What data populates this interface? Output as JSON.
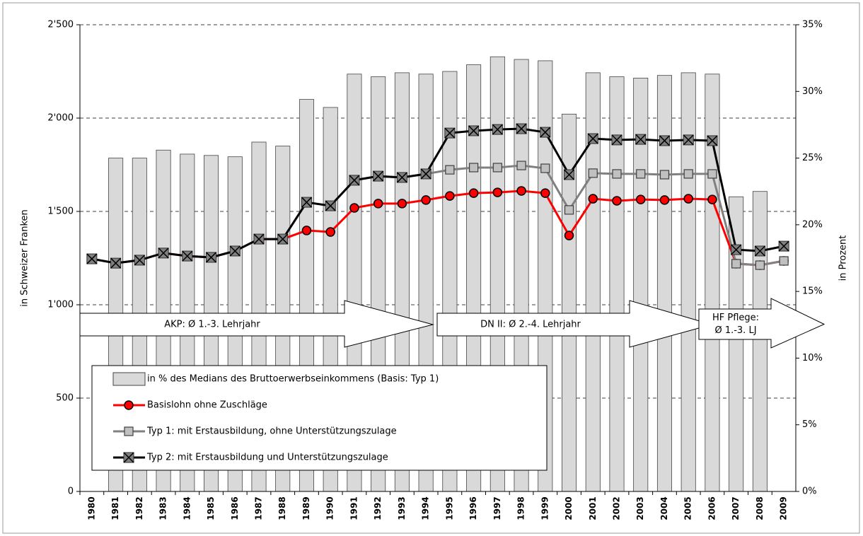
{
  "chart_data": {
    "type": "bar-line",
    "y_label": "in Schweizer Franken",
    "y2_label": "in Prozent",
    "categories": [
      "1980",
      "1981",
      "1982",
      "1983",
      "1984",
      "1985",
      "1986",
      "1987",
      "1988",
      "1989",
      "1990",
      "1991",
      "1992",
      "1993",
      "1994",
      "1995",
      "1996",
      "1997",
      "1998",
      "1999",
      "2000",
      "2001",
      "2002",
      "2003",
      "2004",
      "2005",
      "2006",
      "2007",
      "2008",
      "2009"
    ],
    "ylim": [
      0,
      2500
    ],
    "yticks": [
      0,
      500,
      {
        "value": 1000,
        "label": "1'000"
      },
      {
        "value": 1500,
        "label": "1'500"
      },
      {
        "value": 2000,
        "label": "2'000"
      },
      {
        "value": 2500,
        "label": "2'500"
      }
    ],
    "y2lim": [
      0,
      35
    ],
    "y2ticks": [
      {
        "value": 0,
        "label": "0%"
      },
      {
        "value": 5,
        "label": "5%"
      },
      {
        "value": 10,
        "label": "10%"
      },
      {
        "value": 15,
        "label": "15%"
      },
      {
        "value": 20,
        "label": "20%"
      },
      {
        "value": 25,
        "label": "25%"
      },
      {
        "value": 30,
        "label": "30%"
      },
      {
        "value": 35,
        "label": "35%"
      }
    ],
    "grid": true,
    "series": [
      {
        "name": "in % des Medians des Bruttoerwerbseinkommens (Basis: Typ 1)",
        "kind": "bar",
        "axis": "y2",
        "color": "#d9d9d9",
        "values": [
          null,
          25.0,
          25.0,
          25.6,
          25.3,
          25.2,
          25.1,
          26.2,
          25.9,
          29.4,
          28.8,
          31.3,
          31.1,
          31.4,
          31.3,
          31.5,
          32.0,
          32.6,
          32.4,
          32.3,
          28.3,
          31.4,
          31.1,
          31.0,
          31.2,
          31.4,
          31.3,
          22.1,
          22.5,
          null
        ]
      },
      {
        "name": "Basislohn ohne Zuschläge",
        "kind": "line",
        "marker": "circle",
        "color": "#ff0000",
        "values": [
          1246,
          1223,
          1239,
          1277,
          1261,
          1254,
          1288,
          1352,
          1352,
          1398,
          1390,
          1519,
          1542,
          1542,
          1561,
          1583,
          1598,
          1602,
          1610,
          1598,
          1371,
          1568,
          1557,
          1564,
          1561,
          1568,
          1564,
          1220,
          1212,
          1235
        ]
      },
      {
        "name": "Typ 1: mit Erstausbildung, ohne Unterstützungszulage",
        "kind": "line",
        "marker": "square",
        "color": "#808080",
        "values": [
          1246,
          1223,
          1239,
          1277,
          1261,
          1254,
          1288,
          1352,
          1352,
          1549,
          1530,
          1667,
          1689,
          1682,
          1701,
          1723,
          1735,
          1735,
          1746,
          1731,
          1508,
          1705,
          1701,
          1701,
          1697,
          1701,
          1701,
          1220,
          1212,
          1235
        ]
      },
      {
        "name": "Typ 2: mit Erstausbildung und Unterstützungszulage",
        "kind": "line",
        "marker": "cross",
        "color": "#000000",
        "values": [
          1246,
          1223,
          1239,
          1277,
          1261,
          1254,
          1288,
          1352,
          1352,
          1549,
          1530,
          1667,
          1689,
          1682,
          1701,
          1920,
          1932,
          1939,
          1943,
          1924,
          1697,
          1890,
          1883,
          1886,
          1879,
          1883,
          1879,
          1295,
          1288,
          1314
        ]
      }
    ],
    "annotations": [
      {
        "lines": [
          "AKP: Ø 1.-3. Lehrjahr"
        ]
      },
      {
        "lines": [
          "DN II: Ø 2.-4. Lehrjahr"
        ]
      },
      {
        "lines": [
          "HF Pflege:",
          "Ø 1.-3. LJ"
        ]
      }
    ]
  }
}
